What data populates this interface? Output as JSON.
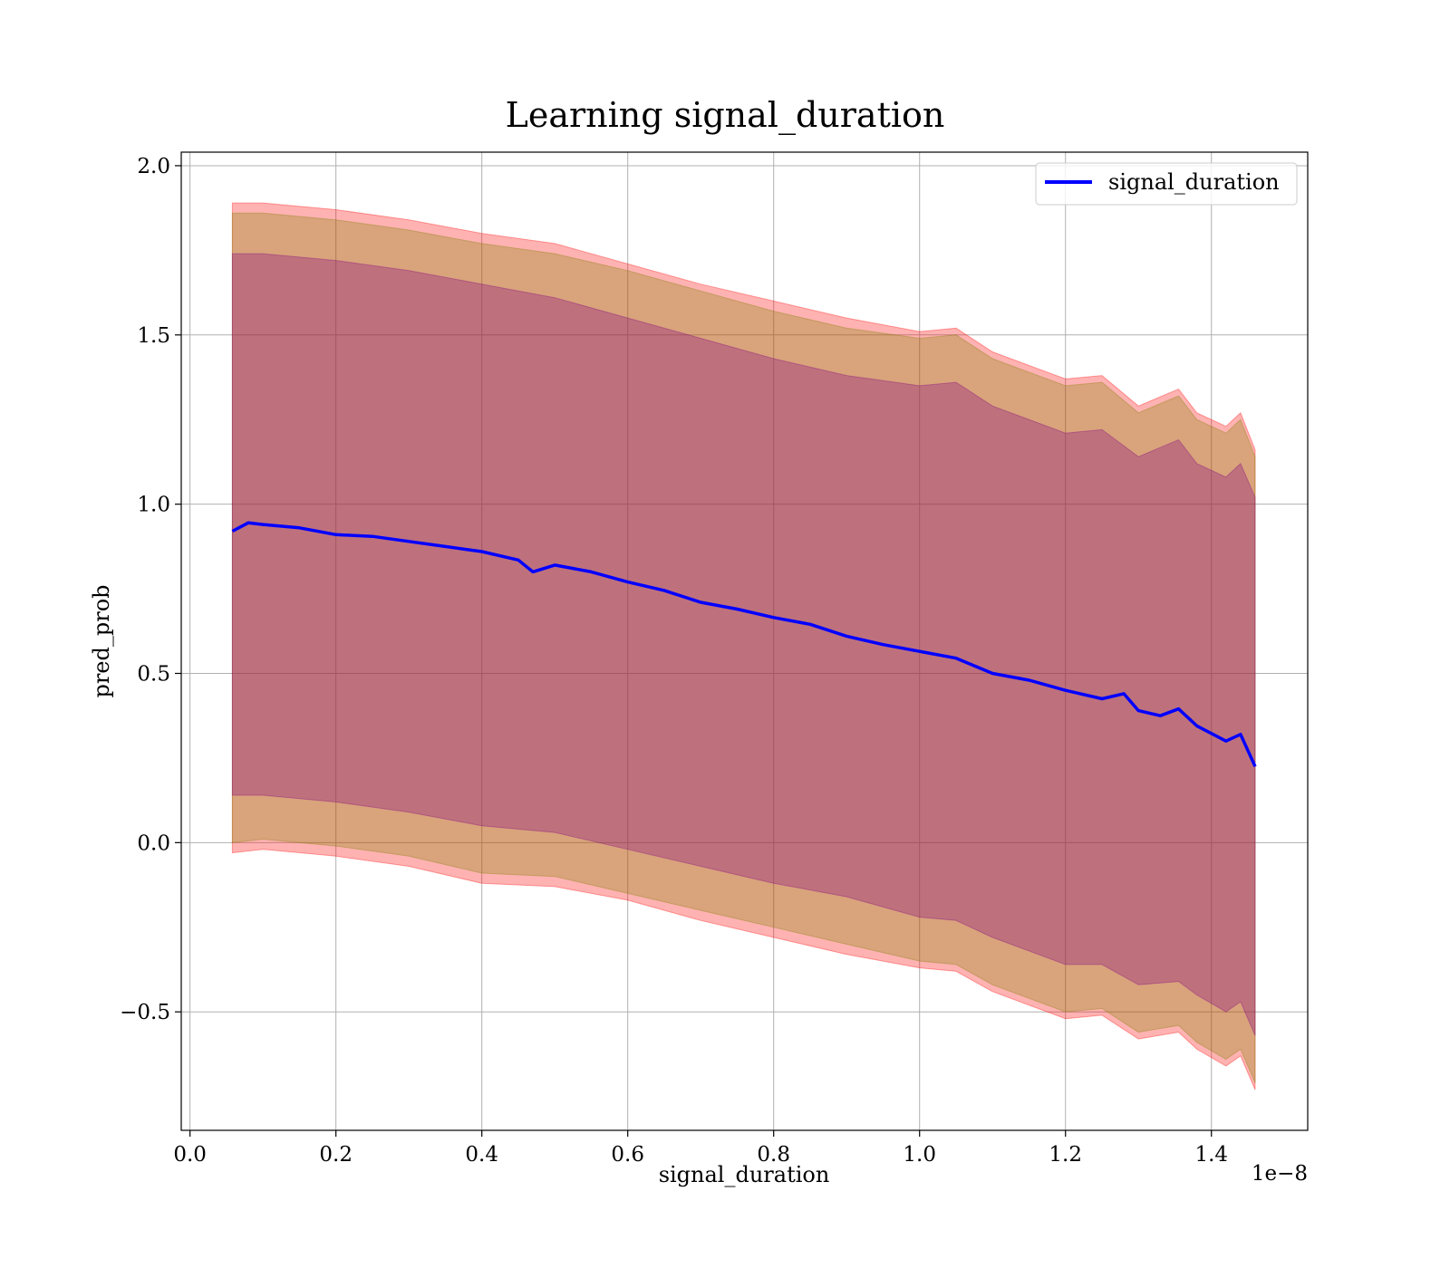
{
  "chart_data": {
    "type": "line",
    "title": "Learning signal_duration",
    "xlabel": "signal_duration",
    "ylabel": "pred_prob",
    "x_offset_label": "1e−8",
    "xlim": [
      -0.012,
      1.532
    ],
    "ylim": [
      -0.85,
      2.04
    ],
    "grid": true,
    "legend_position": "top-right",
    "x_ticks": [
      0.0,
      0.2,
      0.4,
      0.6,
      0.8,
      1.0,
      1.2,
      1.4
    ],
    "x_tick_labels": [
      "0.0",
      "0.2",
      "0.4",
      "0.6",
      "0.8",
      "1.0",
      "1.2",
      "1.4"
    ],
    "y_ticks": [
      -0.5,
      0.0,
      0.5,
      1.0,
      1.5,
      2.0
    ],
    "y_tick_labels": [
      "−0.5",
      "0.0",
      "0.5",
      "1.0",
      "1.5",
      "2.0"
    ],
    "series": [
      {
        "name": "signal_duration",
        "color": "#0000ff",
        "x": [
          0.058,
          0.08,
          0.1,
          0.15,
          0.2,
          0.25,
          0.3,
          0.35,
          0.4,
          0.45,
          0.47,
          0.5,
          0.55,
          0.6,
          0.65,
          0.7,
          0.75,
          0.8,
          0.85,
          0.9,
          0.95,
          1.0,
          1.05,
          1.1,
          1.15,
          1.2,
          1.25,
          1.28,
          1.3,
          1.33,
          1.355,
          1.38,
          1.42,
          1.44,
          1.46
        ],
        "y": [
          0.92,
          0.945,
          0.94,
          0.93,
          0.91,
          0.905,
          0.89,
          0.875,
          0.86,
          0.835,
          0.8,
          0.82,
          0.8,
          0.77,
          0.745,
          0.71,
          0.69,
          0.665,
          0.645,
          0.61,
          0.585,
          0.565,
          0.545,
          0.5,
          0.48,
          0.45,
          0.425,
          0.44,
          0.39,
          0.375,
          0.395,
          0.345,
          0.3,
          0.32,
          0.225
        ]
      }
    ],
    "bands": [
      {
        "color": "#ff0000",
        "x": [
          0.058,
          0.1,
          0.2,
          0.3,
          0.4,
          0.5,
          0.6,
          0.7,
          0.8,
          0.9,
          1.0,
          1.05,
          1.1,
          1.2,
          1.25,
          1.3,
          1.355,
          1.38,
          1.42,
          1.44,
          1.46
        ],
        "upper": [
          1.89,
          1.89,
          1.87,
          1.84,
          1.8,
          1.77,
          1.71,
          1.65,
          1.6,
          1.55,
          1.51,
          1.52,
          1.45,
          1.37,
          1.38,
          1.29,
          1.34,
          1.27,
          1.23,
          1.27,
          1.16
        ],
        "lower": [
          -0.03,
          -0.02,
          -0.04,
          -0.07,
          -0.12,
          -0.13,
          -0.17,
          -0.23,
          -0.28,
          -0.33,
          -0.37,
          -0.38,
          -0.44,
          -0.52,
          -0.51,
          -0.58,
          -0.56,
          -0.61,
          -0.66,
          -0.63,
          -0.73
        ]
      },
      {
        "color": "#808000",
        "x": [
          0.058,
          0.1,
          0.2,
          0.3,
          0.4,
          0.5,
          0.6,
          0.7,
          0.8,
          0.9,
          1.0,
          1.05,
          1.1,
          1.2,
          1.25,
          1.3,
          1.355,
          1.38,
          1.42,
          1.44,
          1.46
        ],
        "upper": [
          1.86,
          1.86,
          1.84,
          1.81,
          1.77,
          1.74,
          1.69,
          1.63,
          1.57,
          1.52,
          1.49,
          1.5,
          1.43,
          1.35,
          1.36,
          1.27,
          1.32,
          1.25,
          1.21,
          1.25,
          1.14
        ],
        "lower": [
          0.0,
          0.01,
          -0.01,
          -0.04,
          -0.09,
          -0.1,
          -0.15,
          -0.2,
          -0.25,
          -0.3,
          -0.35,
          -0.36,
          -0.42,
          -0.5,
          -0.49,
          -0.56,
          -0.54,
          -0.59,
          -0.64,
          -0.61,
          -0.71
        ]
      },
      {
        "color": "#800080",
        "x": [
          0.058,
          0.1,
          0.2,
          0.3,
          0.4,
          0.5,
          0.6,
          0.7,
          0.8,
          0.9,
          1.0,
          1.05,
          1.1,
          1.2,
          1.25,
          1.3,
          1.355,
          1.38,
          1.42,
          1.44,
          1.46
        ],
        "upper": [
          1.74,
          1.74,
          1.72,
          1.69,
          1.65,
          1.61,
          1.55,
          1.49,
          1.43,
          1.38,
          1.35,
          1.36,
          1.29,
          1.21,
          1.22,
          1.14,
          1.19,
          1.12,
          1.08,
          1.12,
          1.02
        ],
        "lower": [
          0.14,
          0.14,
          0.12,
          0.09,
          0.05,
          0.03,
          -0.02,
          -0.07,
          -0.12,
          -0.16,
          -0.22,
          -0.23,
          -0.28,
          -0.36,
          -0.36,
          -0.42,
          -0.41,
          -0.45,
          -0.5,
          -0.47,
          -0.57
        ]
      }
    ]
  }
}
